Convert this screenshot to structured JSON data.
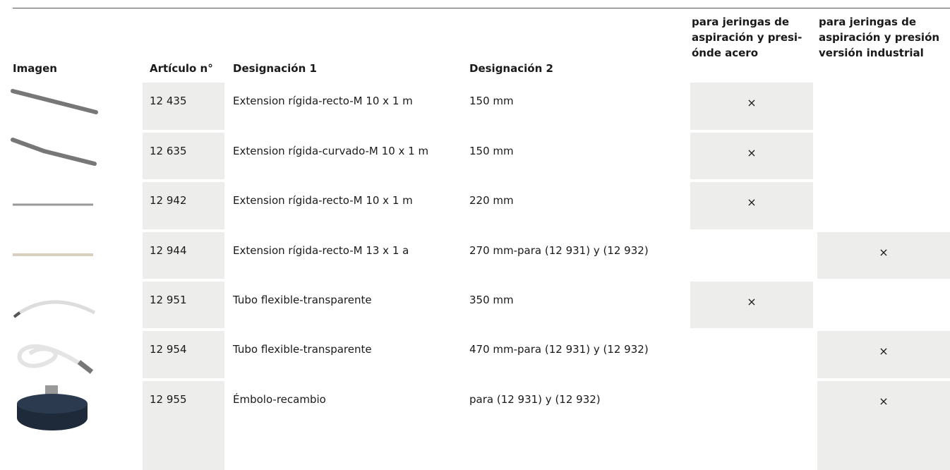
{
  "header": {
    "image": "Imagen",
    "article": "Artículo n°",
    "designation_1": "Designación 1",
    "designation_2": "Designación 2",
    "steel": [
      "para jeringas de",
      "aspiración y presi-",
      "ónde acero"
    ],
    "industrial": [
      "para jeringas de",
      "aspiración y presión",
      "versión industrial"
    ]
  },
  "rows": [
    {
      "article": "12 435",
      "designation_1": "Extension rígida-recto-M 10 x 1 m",
      "designation_2": "150 mm",
      "steel": "×"
    },
    {
      "article": "12 635",
      "designation_1": "Extension rígida-curvado-M 10 x 1 m",
      "designation_2": "150 mm",
      "steel": "×"
    },
    {
      "article": "12 942",
      "designation_1": "Extension rígida-recto-M 10 x 1 m",
      "designation_2": "220 mm",
      "steel": "×"
    },
    {
      "article": "12 944",
      "designation_1": "Extension rígida-recto-M 13 x 1 a",
      "designation_2": "270 mm-para (12 931) y (12 932)",
      "industrial": "×"
    },
    {
      "article": "12 951",
      "designation_1": "Tubo flexible-transparente",
      "designation_2": "350 mm",
      "steel": "×"
    },
    {
      "article": "12 954",
      "designation_1": "Tubo flexible-transparente",
      "designation_2": "470 mm-para (12 931) y (12 932)",
      "industrial": "×"
    },
    {
      "article": "12 955",
      "designation_1": "Émbolo-recambio",
      "designation_2": "para (12 931) y (12 932)",
      "industrial": "×"
    }
  ]
}
